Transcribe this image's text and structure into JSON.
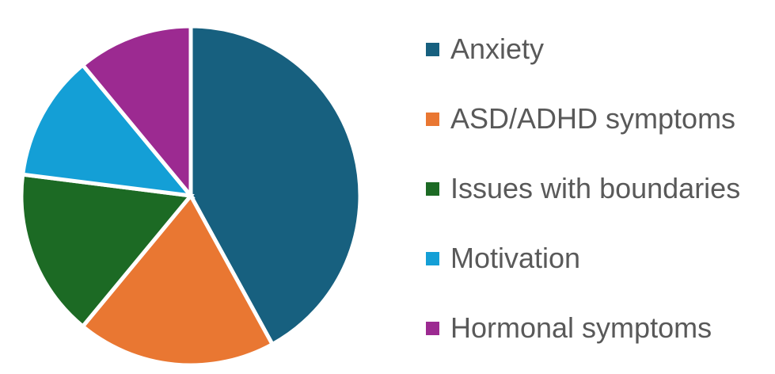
{
  "chart_data": {
    "type": "pie",
    "legend_position": "right",
    "slices": [
      {
        "label": "Anxiety",
        "value": 42,
        "color": "#17607f"
      },
      {
        "label": "ASD/ADHD symptoms",
        "value": 19,
        "color": "#e97732"
      },
      {
        "label": "Issues with boundaries",
        "value": 16,
        "color": "#1c6a24"
      },
      {
        "label": "Motivation",
        "value": 12,
        "color": "#149fd6"
      },
      {
        "label": "Hormonal symptoms",
        "value": 11,
        "color": "#9c2a91"
      }
    ]
  }
}
